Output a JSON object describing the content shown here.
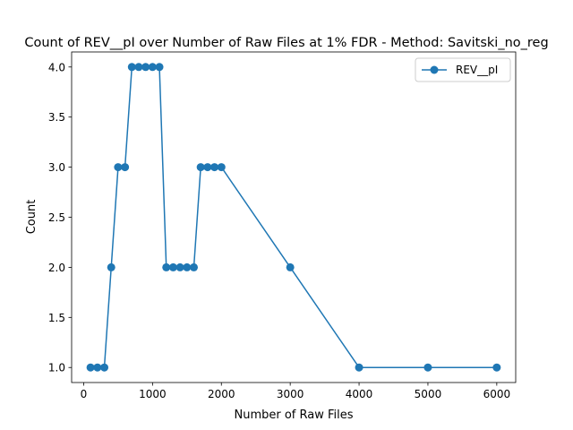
{
  "chart_data": {
    "type": "line",
    "title": "Count of REV__pI over Number of Raw Files at 1% FDR - Method: Savitski_no_reg",
    "xlabel": "Number of Raw Files",
    "ylabel": "Count",
    "xlim": [
      -175,
      6275
    ],
    "ylim": [
      0.85,
      4.15
    ],
    "xticks": [
      0,
      1000,
      2000,
      3000,
      4000,
      5000,
      6000
    ],
    "yticks": [
      1.0,
      1.5,
      2.0,
      2.5,
      3.0,
      3.5,
      4.0
    ],
    "xtick_labels": [
      "0",
      "1000",
      "2000",
      "3000",
      "4000",
      "5000",
      "6000"
    ],
    "ytick_labels": [
      "1.0",
      "1.5",
      "2.0",
      "2.5",
      "3.0",
      "3.5",
      "4.0"
    ],
    "grid": false,
    "legend_position": "top-right",
    "series": [
      {
        "name": "REV__pI",
        "color": "#1f77b4",
        "marker": "circle",
        "x": [
          100,
          200,
          300,
          400,
          500,
          600,
          700,
          800,
          900,
          1000,
          1100,
          1200,
          1300,
          1400,
          1500,
          1600,
          1700,
          1800,
          1900,
          2000,
          3000,
          4000,
          5000,
          6000
        ],
        "y": [
          1,
          1,
          1,
          2,
          3,
          3,
          4,
          4,
          4,
          4,
          4,
          2,
          2,
          2,
          2,
          2,
          3,
          3,
          3,
          3,
          2,
          1,
          1,
          1
        ]
      }
    ]
  }
}
